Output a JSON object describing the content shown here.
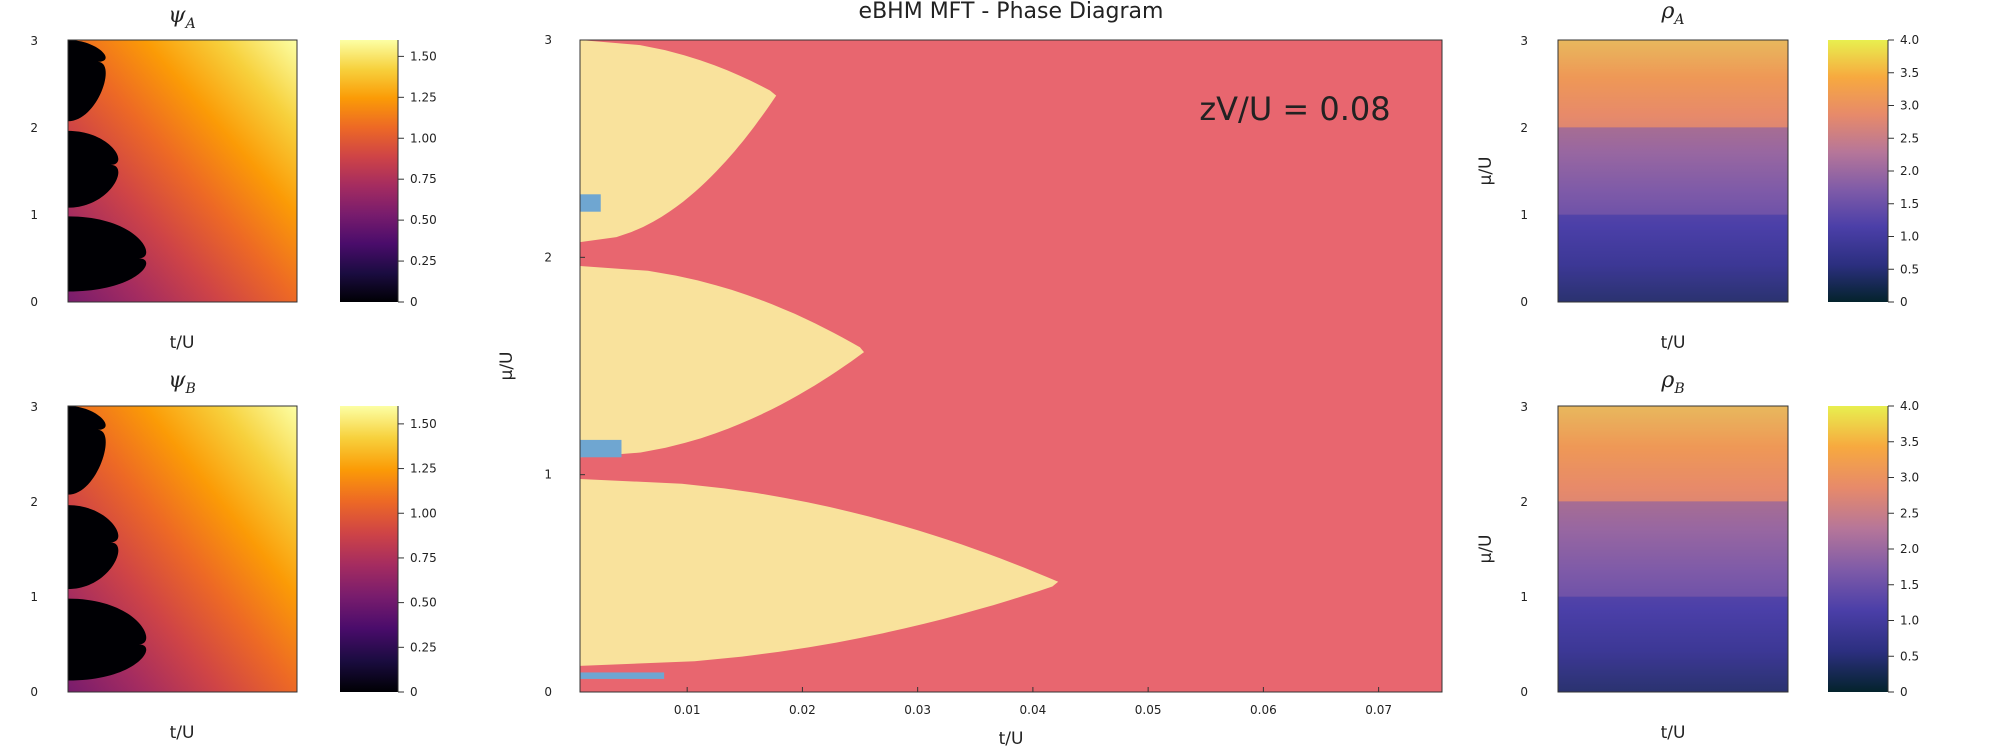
{
  "figure": {
    "main_title": "eBHM MFT - Phase Diagram",
    "annotation": "zV/U = 0.08",
    "colors": {
      "mott": "#f9e29c",
      "superfluid": "#e8666f",
      "cdw": "#6fa6d1",
      "inferno": [
        "#000004",
        "#1b0c41",
        "#4a0c6b",
        "#781c6d",
        "#a52c60",
        "#cf4446",
        "#ed6925",
        "#fb9b06",
        "#f7d13d",
        "#fcffa4"
      ],
      "thermal": [
        "#04232c",
        "#2c2f80",
        "#4b3fa8",
        "#7f5ba8",
        "#b67699",
        "#e78a6a",
        "#f7a93f",
        "#e8ef4f"
      ]
    }
  },
  "chart_data": [
    {
      "id": "psiA",
      "type": "heatmap",
      "title_symbol": "ψ",
      "title_sub": "A",
      "xlabel": "t/U",
      "ylabel": "",
      "yticks": [
        "0",
        "1",
        "2",
        "3"
      ],
      "ylim": [
        0,
        3
      ],
      "colorbar": {
        "ticks": [
          "0",
          "0.25",
          "0.50",
          "0.75",
          "1.00",
          "1.25",
          "1.50"
        ],
        "range": [
          0,
          1.6
        ]
      }
    },
    {
      "id": "psiB",
      "type": "heatmap",
      "title_symbol": "ψ",
      "title_sub": "B",
      "xlabel": "t/U",
      "ylabel": "",
      "yticks": [
        "0",
        "1",
        "2",
        "3"
      ],
      "ylim": [
        0,
        3
      ],
      "colorbar": {
        "ticks": [
          "0",
          "0.25",
          "0.50",
          "0.75",
          "1.00",
          "1.25",
          "1.50"
        ],
        "range": [
          0,
          1.6
        ]
      }
    },
    {
      "id": "phase",
      "type": "heatmap",
      "title": "eBHM MFT - Phase Diagram",
      "xlabel": "t/U",
      "ylabel": "μ/U",
      "xticks": [
        "0.01",
        "0.02",
        "0.03",
        "0.04",
        "0.05",
        "0.06",
        "0.07"
      ],
      "yticks": [
        "0",
        "1",
        "2",
        "3"
      ],
      "xlim": [
        0.0007,
        0.0755
      ],
      "ylim": [
        0,
        3
      ],
      "mott_lobes": [
        {
          "mu_lo": 0.12,
          "mu_hi": 0.98,
          "t_tip": 0.0425,
          "mu_tip": 0.5
        },
        {
          "mu_lo": 1.08,
          "mu_hi": 1.96,
          "t_tip": 0.0255,
          "mu_tip": 1.57
        },
        {
          "mu_lo": 2.07,
          "mu_hi": 3.0,
          "t_tip": 0.0178,
          "mu_tip": 2.75
        }
      ],
      "cdw_regions": [
        {
          "t0": 0.0007,
          "t1": 0.008,
          "mu0": 0.06,
          "mu1": 0.09
        },
        {
          "t0": 0.0007,
          "t1": 0.0025,
          "mu0": 2.21,
          "mu1": 2.29
        },
        {
          "t0": 0.0007,
          "t1": 0.0043,
          "mu0": 1.08,
          "mu1": 1.16
        }
      ]
    },
    {
      "id": "rhoA",
      "type": "heatmap",
      "title_symbol": "ρ",
      "title_sub": "A",
      "xlabel": "t/U",
      "ylabel": "μ/U",
      "yticks": [
        "0",
        "1",
        "2",
        "3"
      ],
      "ylim": [
        0,
        3
      ],
      "colorbar": {
        "ticks": [
          "0",
          "0.5",
          "1.0",
          "1.5",
          "2.0",
          "2.5",
          "3.0",
          "3.5",
          "4.0"
        ],
        "range": [
          0,
          4
        ]
      }
    },
    {
      "id": "rhoB",
      "type": "heatmap",
      "title_symbol": "ρ",
      "title_sub": "B",
      "xlabel": "t/U",
      "ylabel": "μ/U",
      "yticks": [
        "0",
        "1",
        "2",
        "3"
      ],
      "ylim": [
        0,
        3
      ],
      "colorbar": {
        "ticks": [
          "0",
          "0.5",
          "1.0",
          "1.5",
          "2.0",
          "2.5",
          "3.0",
          "3.5",
          "4.0"
        ],
        "range": [
          0,
          4
        ]
      }
    }
  ]
}
